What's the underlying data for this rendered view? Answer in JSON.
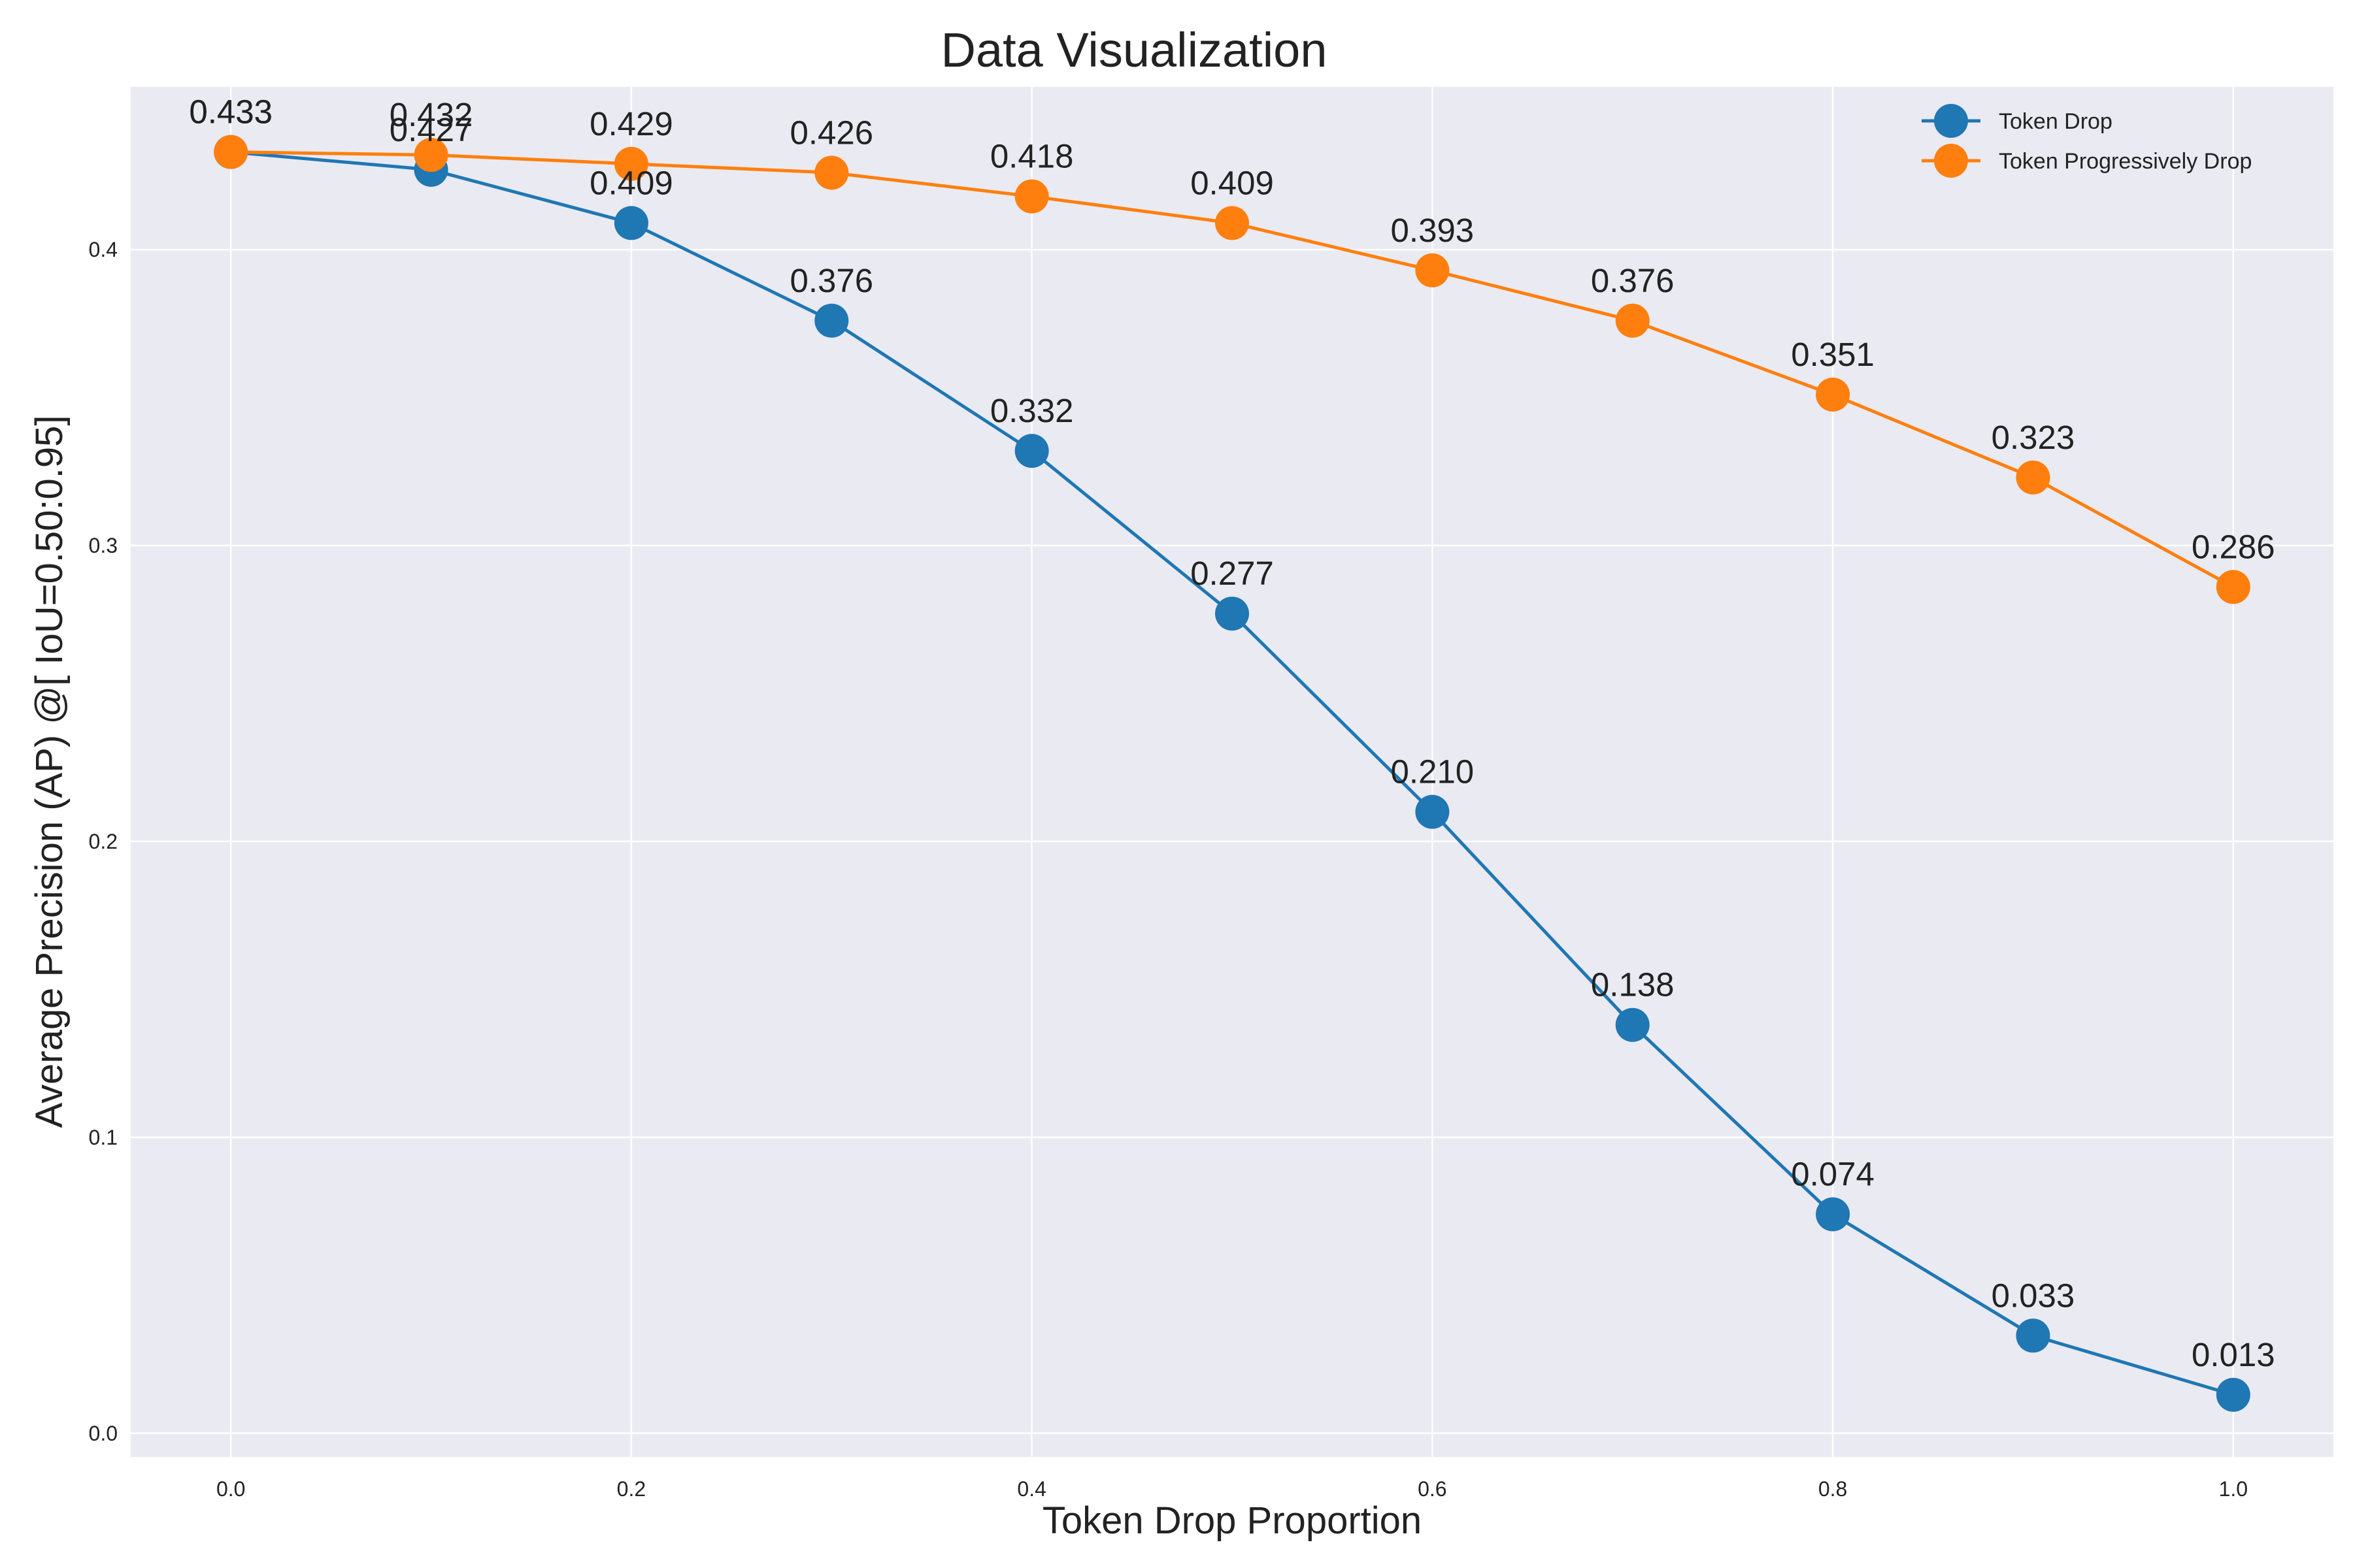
{
  "chart_data": {
    "type": "line",
    "title": "Data Visualization",
    "xlabel": "Token Drop Proportion",
    "ylabel": "Average Precision  (AP) @[ IoU=0.50:0.95]",
    "x": [
      0.0,
      0.1,
      0.2,
      0.3,
      0.4,
      0.5,
      0.6,
      0.7,
      0.8,
      0.9,
      1.0
    ],
    "xlim": [
      -0.05,
      1.05
    ],
    "ylim": [
      -0.008,
      0.455
    ],
    "x_ticks": [
      0.0,
      0.2,
      0.4,
      0.6,
      0.8,
      1.0
    ],
    "x_tick_labels": [
      "0.0",
      "0.2",
      "0.4",
      "0.6",
      "0.8",
      "1.0"
    ],
    "y_ticks": [
      0.0,
      0.1,
      0.2,
      0.3,
      0.4
    ],
    "y_tick_labels": [
      "0.0",
      "0.1",
      "0.2",
      "0.3",
      "0.4"
    ],
    "grid": true,
    "legend_position": "top-right",
    "background_color": "#eaeaf2",
    "grid_color": "#ffffff",
    "series": [
      {
        "name": "Token Drop",
        "color": "#1f77b4",
        "values": [
          0.433,
          0.427,
          0.409,
          0.376,
          0.332,
          0.277,
          0.21,
          0.138,
          0.074,
          0.033,
          0.013
        ],
        "labels": [
          "0.433",
          "0.427",
          "0.409",
          "0.376",
          "0.332",
          "0.277",
          "0.210",
          "0.138",
          "0.074",
          "0.033",
          "0.013"
        ]
      },
      {
        "name": "Token Progressively Drop",
        "color": "#ff7f0e",
        "values": [
          0.433,
          0.432,
          0.429,
          0.426,
          0.418,
          0.409,
          0.393,
          0.376,
          0.351,
          0.323,
          0.286
        ],
        "labels": [
          "0.433",
          "0.432",
          "0.429",
          "0.426",
          "0.418",
          "0.409",
          "0.393",
          "0.376",
          "0.351",
          "0.323",
          "0.286"
        ]
      }
    ]
  }
}
